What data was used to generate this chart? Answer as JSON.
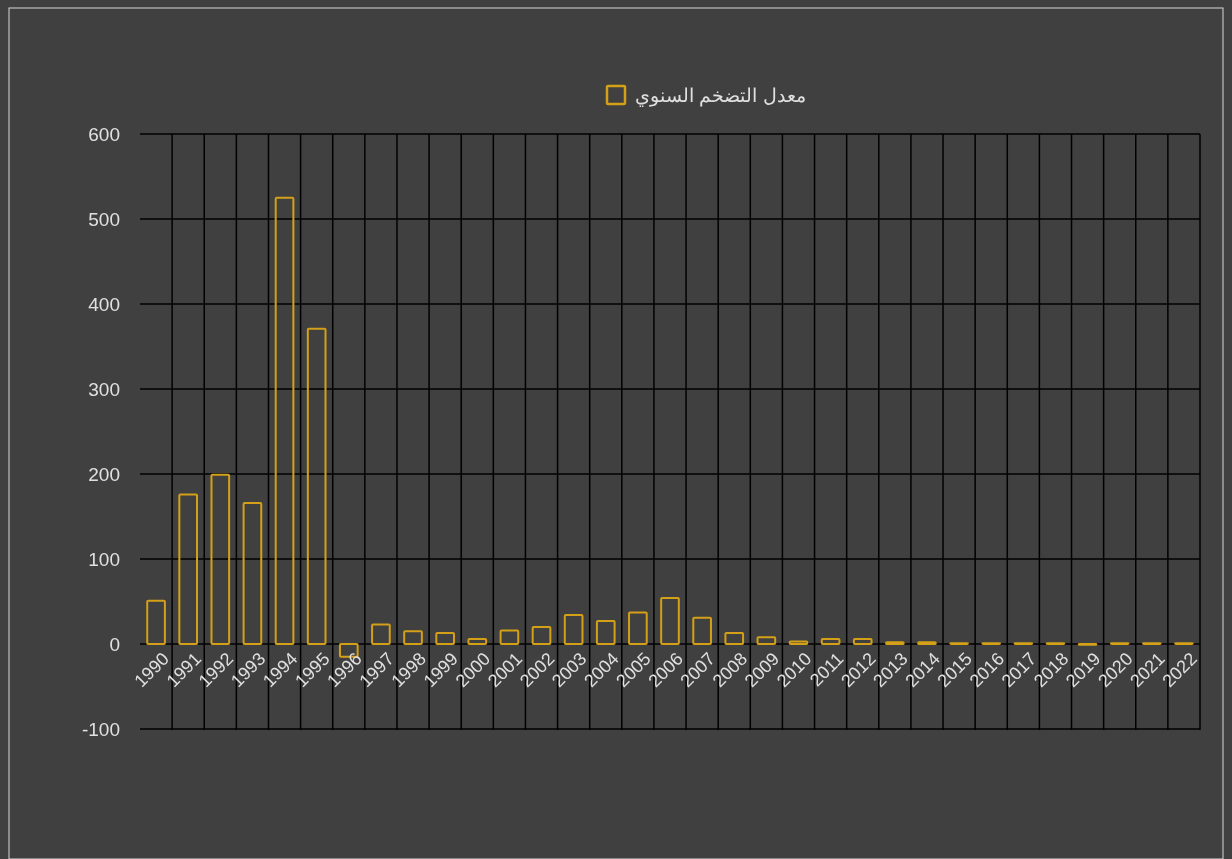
{
  "chart_data": {
    "type": "bar",
    "categories": [
      "1990",
      "1991",
      "1992",
      "1993",
      "1994",
      "1995",
      "1996",
      "1997",
      "1998",
      "1999",
      "2000",
      "2001",
      "2002",
      "2003",
      "2004",
      "2005",
      "2006",
      "2007",
      "2008",
      "2009",
      "2010",
      "2011",
      "2012",
      "2013",
      "2014",
      "2015",
      "2016",
      "2017",
      "2018",
      "2019",
      "2020",
      "2021",
      "2022"
    ],
    "series": [
      {
        "name": "معدل التضخم السنوي",
        "color": "#d4a017",
        "values": [
          51,
          176,
          199,
          166,
          525,
          371,
          -15,
          23,
          15,
          13,
          6,
          16,
          20,
          34,
          27,
          37,
          54,
          31,
          13,
          8,
          3,
          6,
          6,
          2,
          2,
          1,
          1,
          1,
          1,
          -1,
          1,
          1,
          1
        ]
      }
    ],
    "ylim": [
      -100,
      600
    ],
    "yticks": [
      -100,
      0,
      100,
      200,
      300,
      400,
      500,
      600
    ],
    "grid": true,
    "legend": "top"
  }
}
